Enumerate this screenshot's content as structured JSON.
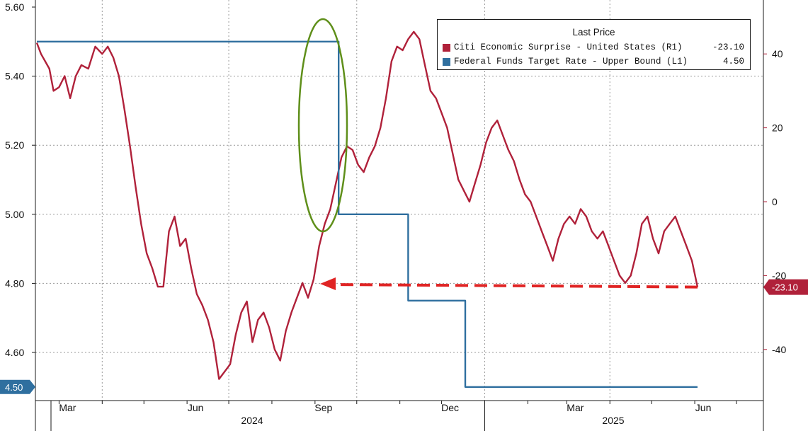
{
  "chart_data": {
    "type": "line",
    "x_axis": {
      "tick_labels": [
        "Mar",
        "Jun",
        "Sep",
        "Dec",
        "Mar",
        "Jun"
      ],
      "year_labels": [
        "2024",
        "2025"
      ]
    },
    "left_axis": {
      "range": [
        4.5,
        5.6
      ],
      "tick_labels": [
        "5.60",
        "5.40",
        "5.20",
        "5.00",
        "4.80",
        "4.60"
      ],
      "current_tag": "4.50"
    },
    "right_axis": {
      "range": [
        -50,
        54
      ],
      "tick_labels": [
        "40",
        "20",
        "0",
        "-20",
        "-40"
      ],
      "current_tag": "-23.10"
    },
    "grid": true,
    "legend": {
      "title": "Last Price",
      "placement": "top-right",
      "entries": [
        {
          "label": "Citi Economic Surprise - United States  (R1)",
          "value": "-23.10",
          "color": "#b0213a"
        },
        {
          "label": "Federal Funds Target Rate - Upper Bound  (L1)",
          "value": "4.50",
          "color": "#2f6f9f"
        }
      ]
    },
    "series": [
      {
        "name": "Citi Economic Surprise - United States",
        "axis": "right",
        "color": "#b0213a",
        "x": [
          "2024-02-14",
          "2024-02-17",
          "2024-02-20",
          "2024-02-23",
          "2024-02-26",
          "2024-03-01",
          "2024-03-05",
          "2024-03-09",
          "2024-03-13",
          "2024-03-17",
          "2024-03-22",
          "2024-03-27",
          "2024-04-01",
          "2024-04-05",
          "2024-04-09",
          "2024-04-13",
          "2024-04-17",
          "2024-04-21",
          "2024-04-25",
          "2024-04-29",
          "2024-05-03",
          "2024-05-07",
          "2024-05-11",
          "2024-05-15",
          "2024-05-19",
          "2024-05-23",
          "2024-05-27",
          "2024-05-31",
          "2024-06-04",
          "2024-06-08",
          "2024-06-12",
          "2024-06-16",
          "2024-06-20",
          "2024-06-24",
          "2024-06-28",
          "2024-07-02",
          "2024-07-06",
          "2024-07-10",
          "2024-07-14",
          "2024-07-18",
          "2024-07-22",
          "2024-07-26",
          "2024-07-30",
          "2024-08-03",
          "2024-08-07",
          "2024-08-11",
          "2024-08-15",
          "2024-08-19",
          "2024-08-23",
          "2024-08-27",
          "2024-08-31",
          "2024-09-04",
          "2024-09-08",
          "2024-09-12",
          "2024-09-16",
          "2024-09-20",
          "2024-09-24",
          "2024-09-28",
          "2024-10-02",
          "2024-10-06",
          "2024-10-10",
          "2024-10-14",
          "2024-10-18",
          "2024-10-22",
          "2024-10-26",
          "2024-10-30",
          "2024-11-03",
          "2024-11-07",
          "2024-11-11",
          "2024-11-15",
          "2024-11-19",
          "2024-11-23",
          "2024-11-27",
          "2024-12-01",
          "2024-12-05",
          "2024-12-09",
          "2024-12-13",
          "2024-12-17",
          "2024-12-21",
          "2024-12-25",
          "2024-12-29",
          "2025-01-02",
          "2025-01-06",
          "2025-01-10",
          "2025-01-14",
          "2025-01-18",
          "2025-01-22",
          "2025-01-26",
          "2025-01-30",
          "2025-02-03",
          "2025-02-07",
          "2025-02-11",
          "2025-02-15",
          "2025-02-19",
          "2025-02-23",
          "2025-02-27",
          "2025-03-03",
          "2025-03-07",
          "2025-03-11",
          "2025-03-15",
          "2025-03-19",
          "2025-03-23",
          "2025-03-27",
          "2025-03-31",
          "2025-04-04",
          "2025-04-08",
          "2025-04-12",
          "2025-04-16",
          "2025-04-20",
          "2025-04-24",
          "2025-04-28",
          "2025-05-02",
          "2025-05-06",
          "2025-05-10",
          "2025-05-14",
          "2025-05-18",
          "2025-05-22",
          "2025-05-26",
          "2025-05-30",
          "2025-06-03"
        ],
        "values": [
          43,
          40,
          38,
          36,
          30,
          31,
          34,
          28,
          34,
          37,
          36,
          42,
          40,
          42,
          39,
          34,
          25,
          15,
          4,
          -6,
          -14,
          -18,
          -23,
          -23,
          -8,
          -4,
          -12,
          -10,
          -18,
          -25,
          -28,
          -32,
          -38,
          -48,
          -46,
          -44,
          -36,
          -30,
          -27,
          -38,
          -32,
          -30,
          -34,
          -40,
          -43,
          -35,
          -30,
          -26,
          -22,
          -26,
          -21,
          -12,
          -6,
          -2,
          5,
          12,
          15,
          14,
          10,
          8,
          12,
          15,
          20,
          28,
          38,
          42,
          41,
          44,
          46,
          44,
          37,
          30,
          28,
          24,
          20,
          13,
          6,
          3,
          0,
          5,
          10,
          16,
          20,
          22,
          18,
          14,
          11,
          6,
          2,
          0,
          -4,
          -8,
          -12,
          -16,
          -10,
          -6,
          -4,
          -6,
          -2,
          -4,
          -8,
          -10,
          -8,
          -12,
          -16,
          -20,
          -22,
          -20,
          -14,
          -6,
          -4,
          -10,
          -14,
          -8,
          -6,
          -4,
          -8,
          -12,
          -16,
          -23.1
        ]
      },
      {
        "name": "Federal Funds Target Rate - Upper Bound",
        "axis": "left",
        "color": "#2f6f9f",
        "x": [
          "2024-02-14",
          "2024-09-18",
          "2024-09-18",
          "2024-11-07",
          "2024-11-07",
          "2024-12-18",
          "2024-12-18",
          "2025-06-03"
        ],
        "values": [
          5.5,
          5.5,
          5.0,
          5.0,
          4.75,
          4.75,
          4.5,
          4.5
        ]
      }
    ]
  }
}
